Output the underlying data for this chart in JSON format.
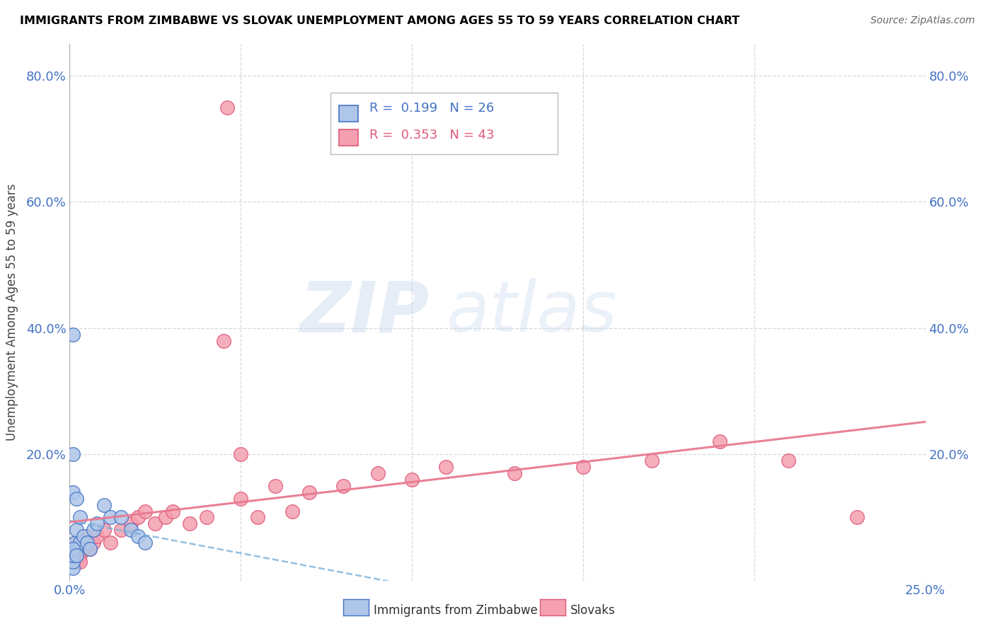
{
  "title": "IMMIGRANTS FROM ZIMBABWE VS SLOVAK UNEMPLOYMENT AMONG AGES 55 TO 59 YEARS CORRELATION CHART",
  "source": "Source: ZipAtlas.com",
  "ylabel": "Unemployment Among Ages 55 to 59 years",
  "xlim": [
    0.0,
    0.25
  ],
  "ylim": [
    0.0,
    0.85
  ],
  "ytick_positions": [
    0.0,
    0.2,
    0.4,
    0.6,
    0.8
  ],
  "ytick_labels": [
    "",
    "20.0%",
    "40.0%",
    "60.0%",
    "80.0%"
  ],
  "xtick_positions": [
    0.0,
    0.05,
    0.1,
    0.15,
    0.2,
    0.25
  ],
  "xtick_labels": [
    "0.0%",
    "",
    "",
    "",
    "",
    "25.0%"
  ],
  "legend_R1": "0.199",
  "legend_N1": "26",
  "legend_R2": "0.353",
  "legend_N2": "43",
  "legend_label1": "Immigrants from Zimbabwe",
  "legend_label2": "Slovaks",
  "zimbabwe_color": "#aec6e8",
  "zimbabwe_edge": "#4472c4",
  "slovak_color": "#f4a0b0",
  "slovak_edge": "#e05878",
  "zim_trend_color": "#7ab0d8",
  "slo_trend_color": "#e87a90",
  "background_color": "#ffffff",
  "grid_color": "#d8d8d8",
  "tick_label_color": "#4472c4",
  "zim_x": [
    0.001,
    0.001,
    0.0015,
    0.002,
    0.002,
    0.003,
    0.003,
    0.004,
    0.005,
    0.006,
    0.007,
    0.008,
    0.01,
    0.012,
    0.015,
    0.018,
    0.02,
    0.022,
    0.001,
    0.001,
    0.002,
    0.001,
    0.001,
    0.001,
    0.002,
    0.001
  ],
  "zim_y": [
    0.02,
    0.04,
    0.06,
    0.05,
    0.08,
    0.06,
    0.1,
    0.07,
    0.06,
    0.05,
    0.08,
    0.09,
    0.12,
    0.1,
    0.1,
    0.08,
    0.07,
    0.06,
    0.2,
    0.14,
    0.13,
    0.03,
    0.04,
    0.05,
    0.04,
    0.39
  ],
  "slo_x": [
    0.001,
    0.001,
    0.002,
    0.002,
    0.003,
    0.004,
    0.005,
    0.006,
    0.007,
    0.008,
    0.01,
    0.012,
    0.015,
    0.018,
    0.02,
    0.022,
    0.025,
    0.028,
    0.03,
    0.035,
    0.04,
    0.045,
    0.05,
    0.055,
    0.06,
    0.065,
    0.07,
    0.08,
    0.09,
    0.1,
    0.11,
    0.13,
    0.15,
    0.17,
    0.19,
    0.21,
    0.23,
    0.046,
    0.05,
    0.002,
    0.003,
    0.003,
    0.004
  ],
  "slo_y": [
    0.04,
    0.05,
    0.04,
    0.06,
    0.05,
    0.06,
    0.07,
    0.05,
    0.06,
    0.07,
    0.08,
    0.06,
    0.08,
    0.09,
    0.1,
    0.11,
    0.09,
    0.1,
    0.11,
    0.09,
    0.1,
    0.38,
    0.13,
    0.1,
    0.15,
    0.11,
    0.14,
    0.15,
    0.17,
    0.16,
    0.18,
    0.17,
    0.18,
    0.19,
    0.22,
    0.19,
    0.1,
    0.75,
    0.2,
    0.03,
    0.04,
    0.03,
    0.05
  ]
}
